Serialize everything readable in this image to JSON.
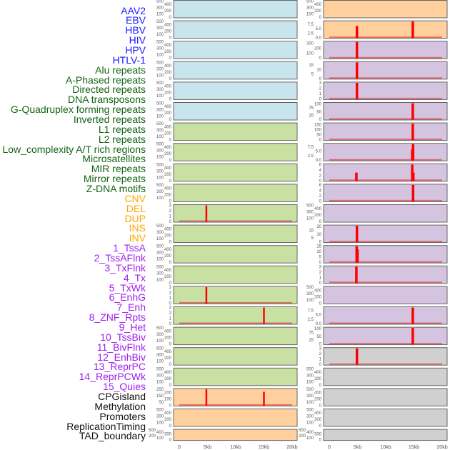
{
  "chart_data": {
    "type": "bar",
    "title": "",
    "xlabel": "",
    "ylabel": "",
    "xlim_kb": [
      0,
      20
    ],
    "xticks": [
      "0",
      "5kb",
      "10kb",
      "15kb",
      "20kb"
    ],
    "xtick_values_kb": [
      0,
      5,
      10,
      15,
      20
    ],
    "label_groups": [
      {
        "color": "#1a1aff",
        "labels": [
          "AAV2",
          "EBV",
          "HBV",
          "HIV",
          "HPV",
          "HTLV-1"
        ]
      },
      {
        "color": "#146414",
        "labels": [
          "Alu repeats",
          "A-Phased repeats",
          "Directed repeats",
          "DNA transposons",
          "G-Quadruplex forming repeats",
          "Inverted repeats",
          "L1 repeats",
          "L2 repeats",
          "Low_complexity A/T rich regions",
          "Microsatellites",
          "MIR repeats",
          "Mirror repeats",
          "Z-DNA motifs"
        ]
      },
      {
        "color": "#ffa500",
        "labels": [
          "CNV",
          "DEL",
          "DUP",
          "INS",
          "INV"
        ]
      },
      {
        "color": "#a020f0",
        "labels": [
          "1_TssA",
          "2_TssAFlnk",
          "3_TxFlnk",
          "4_Tx",
          "5_TxWk",
          "6_EnhG",
          "7_Enh",
          "8_ZNF_Rpts",
          "9_Het",
          "10_TssBiv",
          "11_BivFlnk",
          "12_EnhBiv",
          "13_ReprPC",
          "14_ReprPCWk",
          "15_Quies"
        ]
      },
      {
        "color": "#111111",
        "labels": [
          "CPGisland",
          "Methylation",
          "Promoters",
          "ReplicationTiming",
          "TAD_boundary"
        ]
      }
    ],
    "peak_color": "#ff0000",
    "columns": [
      {
        "tracks": [
          {
            "color": "#c8e4ec",
            "yticks": [
              "0",
              "100",
              "200",
              "300",
              "400",
              "500"
            ],
            "ylim": [
              0,
              500
            ],
            "peaks": []
          },
          {
            "color": "#c8e4ec",
            "yticks": [
              "0",
              "100",
              "200",
              "300",
              "400",
              "500"
            ],
            "ylim": [
              0,
              500
            ],
            "peaks": []
          },
          {
            "color": "#c8e4ec",
            "yticks": [
              "0",
              "100",
              "200",
              "300",
              "400",
              "500"
            ],
            "ylim": [
              0,
              500
            ],
            "peaks": []
          },
          {
            "color": "#c8e4ec",
            "yticks": [
              "0",
              "100",
              "200",
              "300",
              "400",
              "500"
            ],
            "ylim": [
              0,
              500
            ],
            "peaks": []
          },
          {
            "color": "#c8e4ec",
            "yticks": [
              "0",
              "100",
              "200",
              "300",
              "400",
              "500"
            ],
            "ylim": [
              0,
              500
            ],
            "peaks": []
          },
          {
            "color": "#c8e4ec",
            "yticks": [
              "0",
              "100",
              "200",
              "300",
              "400",
              "500"
            ],
            "ylim": [
              0,
              500
            ],
            "peaks": []
          },
          {
            "color": "#c8e0a2",
            "yticks": [
              "0",
              "100",
              "200",
              "300",
              "400",
              "500"
            ],
            "ylim": [
              0,
              500
            ],
            "peaks": []
          },
          {
            "color": "#c8e0a2",
            "yticks": [
              "0",
              "100",
              "200",
              "300",
              "400",
              "500"
            ],
            "ylim": [
              0,
              500
            ],
            "peaks": []
          },
          {
            "color": "#c8e0a2",
            "yticks": [
              "0",
              "100",
              "200",
              "300",
              "400",
              "500"
            ],
            "ylim": [
              0,
              500
            ],
            "peaks": []
          },
          {
            "color": "#c8e0a2",
            "yticks": [
              "0",
              "100",
              "200",
              "300",
              "400",
              "500"
            ],
            "ylim": [
              0,
              500
            ],
            "peaks": []
          },
          {
            "color": "#c8e0a2",
            "yticks": [
              "0",
              "1",
              "2",
              "3"
            ],
            "ylim": [
              0,
              3
            ],
            "peaks": [
              {
                "x_kb": 4.8,
                "value": 3
              }
            ]
          },
          {
            "color": "#c8e0a2",
            "yticks": [
              "0",
              "100",
              "200",
              "300",
              "400",
              "500"
            ],
            "ylim": [
              0,
              500
            ],
            "peaks": []
          },
          {
            "color": "#c8e0a2",
            "yticks": [
              "0",
              "100",
              "200",
              "300",
              "400",
              "500"
            ],
            "ylim": [
              0,
              500
            ],
            "peaks": []
          },
          {
            "color": "#c8e0a2",
            "yticks": [
              "0",
              "100",
              "200",
              "300",
              "400",
              "500"
            ],
            "ylim": [
              0,
              500
            ],
            "peaks": []
          },
          {
            "color": "#c8e0a2",
            "yticks": [
              "0",
              "1",
              "2",
              "3"
            ],
            "ylim": [
              0,
              3
            ],
            "peaks": [
              {
                "x_kb": 4.8,
                "value": 3
              }
            ]
          },
          {
            "color": "#c8e0a2",
            "yticks": [
              "0",
              "1",
              "2",
              "3"
            ],
            "ylim": [
              0,
              3
            ],
            "peaks": [
              {
                "x_kb": 15.0,
                "value": 3
              }
            ]
          },
          {
            "color": "#c8e0a2",
            "yticks": [
              "0",
              "100",
              "200",
              "300",
              "400",
              "500"
            ],
            "ylim": [
              0,
              500
            ],
            "peaks": []
          },
          {
            "color": "#c8e0a2",
            "yticks": [
              "0",
              "100",
              "200",
              "300",
              "400",
              "500"
            ],
            "ylim": [
              0,
              500
            ],
            "peaks": []
          },
          {
            "color": "#c8e0a2",
            "yticks": [
              "0",
              "100",
              "200",
              "300",
              "400",
              "500"
            ],
            "ylim": [
              0,
              500
            ],
            "peaks": []
          },
          {
            "color": "#ffd09e",
            "yticks": [
              "0",
              "50",
              "100",
              "150",
              "200",
              "250"
            ],
            "ylim": [
              0,
              250
            ],
            "peaks": [
              {
                "x_kb": 4.8,
                "value": 250
              },
              {
                "x_kb": 15.0,
                "value": 210
              }
            ]
          },
          {
            "color": "#ffd09e",
            "yticks": [
              "0",
              "100",
              "200",
              "300",
              "400",
              "500"
            ],
            "ylim": [
              0,
              500
            ],
            "peaks": []
          },
          {
            "color": "#ffd09e",
            "yticks": [
              "0",
              "100",
              "200",
              "300",
              "400",
              "500"
            ],
            "ylim": [
              0,
              500
            ],
            "peaks": []
          }
        ]
      },
      {
        "tracks": [
          {
            "color": "#ffd09e",
            "yticks": [
              "0",
              "100",
              "200",
              "300",
              "400",
              "500"
            ],
            "ylim": [
              0,
              500
            ],
            "peaks": []
          },
          {
            "color": "#ffd09e",
            "yticks": [
              "0.0",
              "2.5",
              "5.0",
              "7.5"
            ],
            "ylim": [
              0,
              9
            ],
            "peaks": [
              {
                "x_kb": 4.9,
                "value": 6.5
              },
              {
                "x_kb": 14.8,
                "value": 9
              }
            ]
          },
          {
            "color": "#d5c4e0",
            "yticks": [
              "0",
              "100",
              "200",
              "300"
            ],
            "ylim": [
              0,
              330
            ],
            "peaks": [
              {
                "x_kb": 4.9,
                "value": 330
              }
            ]
          },
          {
            "color": "#d5c4e0",
            "yticks": [
              "0",
              "5",
              "10",
              "15"
            ],
            "ylim": [
              0,
              18
            ],
            "peaks": [
              {
                "x_kb": 4.9,
                "value": 18
              }
            ]
          },
          {
            "color": "#d5c4e0",
            "yticks": [
              "0",
              "1",
              "2",
              "3"
            ],
            "ylim": [
              0,
              3
            ],
            "peaks": [
              {
                "x_kb": 4.9,
                "value": 3
              }
            ]
          },
          {
            "color": "#d5c4e0",
            "yticks": [
              "0",
              "25",
              "50",
              "75",
              "100"
            ],
            "ylim": [
              0,
              105
            ],
            "peaks": [
              {
                "x_kb": 14.8,
                "value": 105
              }
            ]
          },
          {
            "color": "#d5c4e0",
            "yticks": [
              "0",
              "50",
              "100",
              "150"
            ],
            "ylim": [
              0,
              160
            ],
            "peaks": [
              {
                "x_kb": 14.8,
                "value": 160
              }
            ]
          },
          {
            "color": "#d5c4e0",
            "yticks": [
              "0.0",
              "2.5",
              "5.0",
              "7.5"
            ],
            "ylim": [
              0,
              9
            ],
            "peaks": [
              {
                "x_kb": 14.7,
                "value": 6
              },
              {
                "x_kb": 14.85,
                "value": 9
              }
            ]
          },
          {
            "color": "#d5c4e0",
            "yticks": [
              "0",
              "2",
              "4",
              "6"
            ],
            "ylim": [
              0,
              6
            ],
            "peaks": [
              {
                "x_kb": 4.8,
                "value": 3
              },
              {
                "x_kb": 14.7,
                "value": 6
              },
              {
                "x_kb": 14.9,
                "value": 3
              }
            ]
          },
          {
            "color": "#d5c4e0",
            "yticks": [
              "0",
              "2",
              "4",
              "6"
            ],
            "ylim": [
              0,
              6
            ],
            "peaks": [
              {
                "x_kb": 14.85,
                "value": 6
              }
            ]
          },
          {
            "color": "#d5c4e0",
            "yticks": [
              "0",
              "100",
              "200",
              "300",
              "400",
              "500"
            ],
            "ylim": [
              0,
              500
            ],
            "peaks": []
          },
          {
            "color": "#d5c4e0",
            "yticks": [
              "0",
              "5",
              "10",
              "15",
              "20"
            ],
            "ylim": [
              0,
              21
            ],
            "peaks": [
              {
                "x_kb": 4.9,
                "value": 21
              }
            ]
          },
          {
            "color": "#d5c4e0",
            "yticks": [
              "0",
              "5",
              "10",
              "15"
            ],
            "ylim": [
              0,
              15
            ],
            "peaks": [
              {
                "x_kb": 4.85,
                "value": 15
              },
              {
                "x_kb": 5.0,
                "value": 12
              }
            ]
          },
          {
            "color": "#d5c4e0",
            "yticks": [
              "0",
              "1",
              "2",
              "3"
            ],
            "ylim": [
              0,
              3
            ],
            "peaks": [
              {
                "x_kb": 4.8,
                "value": 3
              }
            ]
          },
          {
            "color": "#d5c4e0",
            "yticks": [
              "0",
              "100",
              "200",
              "300",
              "400",
              "500"
            ],
            "ylim": [
              0,
              500
            ],
            "peaks": []
          },
          {
            "color": "#d5c4e0",
            "yticks": [
              "0.0",
              "2.5",
              "5.0",
              "7.5"
            ],
            "ylim": [
              0,
              9
            ],
            "peaks": [
              {
                "x_kb": 14.8,
                "value": 9
              }
            ]
          },
          {
            "color": "#d5c4e0",
            "yticks": [
              "0",
              "25",
              "50",
              "75",
              "100"
            ],
            "ylim": [
              0,
              105
            ],
            "peaks": [
              {
                "x_kb": 14.8,
                "value": 105
              }
            ]
          },
          {
            "color": "#d0d0d0",
            "yticks": [
              "0",
              "1",
              "2",
              "3"
            ],
            "ylim": [
              0,
              3
            ],
            "peaks": [
              {
                "x_kb": 4.9,
                "value": 3
              }
            ]
          },
          {
            "color": "#d0d0d0",
            "yticks": [
              "0",
              "100",
              "200",
              "300",
              "400",
              "500"
            ],
            "ylim": [
              0,
              500
            ],
            "peaks": []
          },
          {
            "color": "#d0d0d0",
            "yticks": [
              "0",
              "100",
              "200",
              "300",
              "400",
              "500"
            ],
            "ylim": [
              0,
              500
            ],
            "peaks": []
          },
          {
            "color": "#d0d0d0",
            "yticks": [
              "0",
              "100",
              "200",
              "300",
              "400",
              "500"
            ],
            "ylim": [
              0,
              500
            ],
            "peaks": []
          },
          {
            "color": "#d0d0d0",
            "yticks": [
              "0",
              "100",
              "200",
              "300",
              "400",
              "500"
            ],
            "ylim": [
              0,
              500
            ],
            "peaks": []
          }
        ]
      }
    ]
  }
}
